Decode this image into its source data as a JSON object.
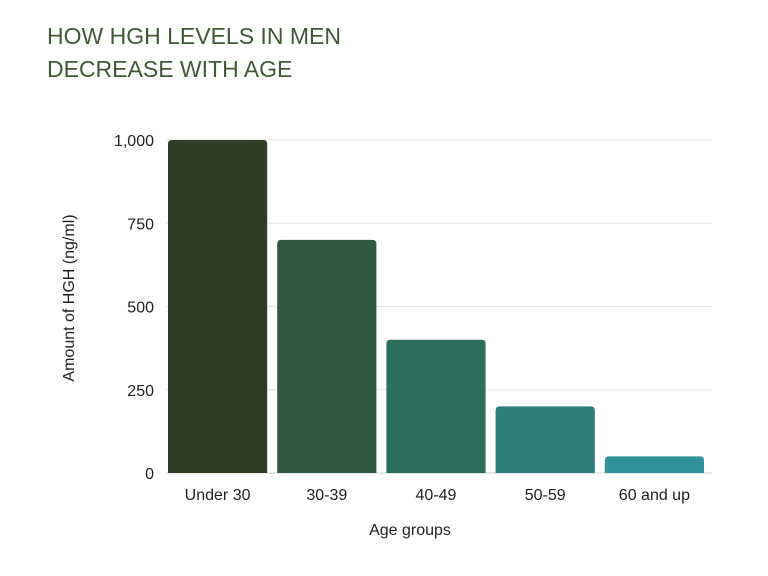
{
  "title_lines": [
    "HOW HGH LEVELS IN MEN",
    "DECREASE WITH AGE"
  ],
  "chart_data": {
    "type": "bar",
    "title": "HOW HGH LEVELS IN MEN DECREASE WITH AGE",
    "categories": [
      "Under 30",
      "30-39",
      "40-49",
      "50-59",
      "60 and up"
    ],
    "values": [
      1000,
      700,
      400,
      200,
      50
    ],
    "xlabel": "Age groups",
    "ylabel": "Amount of HGH (ng/ml)",
    "ylim": [
      0,
      1000
    ],
    "yticks": [
      0,
      250,
      500,
      750,
      1000
    ],
    "ytick_labels": [
      "0",
      "250",
      "500",
      "750",
      "1,000"
    ],
    "grid": true,
    "legend": "none",
    "colors": [
      "#2e3f26",
      "#2d5a3e",
      "#2c6e5c",
      "#2d7d79",
      "#33919b"
    ],
    "title_color": "#3f5a35"
  }
}
